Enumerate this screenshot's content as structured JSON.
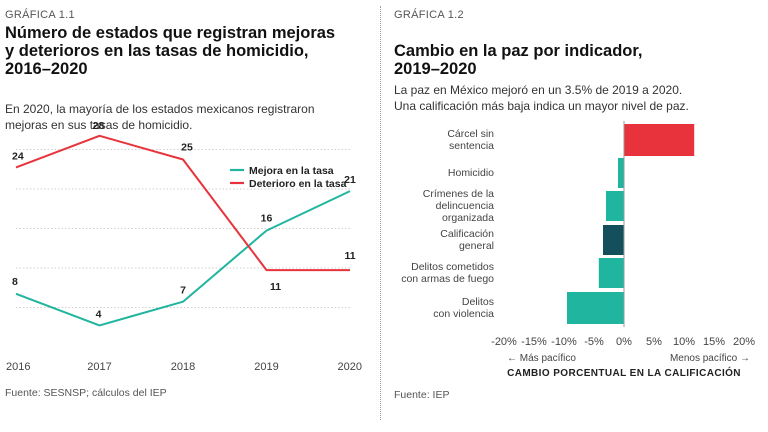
{
  "chart_data": [
    {
      "type": "line",
      "label": "GRÁFICA 1.1",
      "title_lines": [
        "Número de estados que registran mejoras",
        "y deterioros en las tasas de homicidio,",
        "2016–2020"
      ],
      "subtitle_lines": [
        "En 2020, la mayoría de los estados mexicanos registraron",
        "mejoras en sus tasas de homicidio."
      ],
      "categories": [
        "2016",
        "2017",
        "2018",
        "2019",
        "2020"
      ],
      "series": [
        {
          "name": "Mejora en la tasa",
          "color": "#1fb59e",
          "values": [
            8,
            4,
            7,
            16,
            21
          ]
        },
        {
          "name": "Deterioro en la tasa",
          "color": "#e8333c",
          "values": [
            24,
            28,
            25,
            11,
            11
          ]
        }
      ],
      "ylim": [
        0,
        30
      ],
      "grid": true,
      "legend": "right",
      "source": "Fuente: SESNSP; cálculos del IEP"
    },
    {
      "type": "bar",
      "orientation": "horizontal",
      "label": "GRÁFICA 1.2",
      "title_lines": [
        "Cambio en la paz por indicador,",
        "2019–2020"
      ],
      "subtitle_lines": [
        "La paz en México mejoró en un 3.5% de 2019 a 2020.",
        "Una calificación más baja indica un mayor nivel de paz."
      ],
      "categories": [
        [
          "Cárcel sin",
          "sentencia"
        ],
        [
          "Homicidio"
        ],
        [
          "Crímenes de la",
          "delincuencia",
          "organizada"
        ],
        [
          "Calificación",
          "general"
        ],
        [
          "Delitos cometidos",
          "con armas de fuego"
        ],
        [
          "Delitos",
          "con violencia"
        ]
      ],
      "values": [
        11.7,
        -1.0,
        -3.0,
        -3.5,
        -4.2,
        -9.5
      ],
      "colors": [
        "#e8333c",
        "#1fb59e",
        "#1fb59e",
        "#14505c",
        "#1fb59e",
        "#1fb59e"
      ],
      "highlight_color": "#14505c",
      "xticks": [
        "-20%",
        "-15%",
        "-10%",
        "-5%",
        "0%",
        "5%",
        "10%",
        "15%",
        "20%"
      ],
      "xlim": [
        -20,
        20
      ],
      "direction_left": "← Más pacífico",
      "direction_right": "Menos pacífico →",
      "xlabel": "CAMBIO PORCENTUAL EN LA CALIFICACIÓN",
      "source": "Fuente: IEP"
    }
  ]
}
